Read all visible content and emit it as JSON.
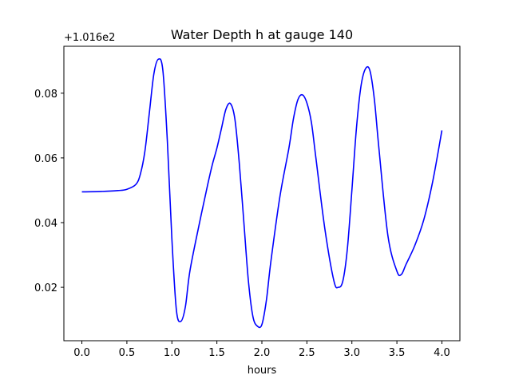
{
  "chart_data": {
    "type": "line",
    "title": "Water Depth h at gauge 140",
    "xlabel": "hours",
    "ylabel": "",
    "offset_text": "+1.016e2",
    "y_offset": 101.6,
    "xlim": [
      -0.2,
      4.2
    ],
    "ylim": [
      0.0035,
      0.0945
    ],
    "x_ticks": [
      0.0,
      0.5,
      1.0,
      1.5,
      2.0,
      2.5,
      3.0,
      3.5,
      4.0
    ],
    "x_tick_labels": [
      "0.0",
      "0.5",
      "1.0",
      "1.5",
      "2.0",
      "2.5",
      "3.0",
      "3.5",
      "4.0"
    ],
    "y_ticks": [
      0.02,
      0.04,
      0.06,
      0.08
    ],
    "y_tick_labels": [
      "0.02",
      "0.04",
      "0.06",
      "0.08"
    ],
    "grid": false,
    "legend": false,
    "line_color": "#0000ff",
    "series": [
      {
        "x": [
          0.0,
          0.2,
          0.4,
          0.5,
          0.6,
          0.65,
          0.7,
          0.75,
          0.8,
          0.85,
          0.9,
          0.95,
          1.0,
          1.05,
          1.1,
          1.15,
          1.2,
          1.3,
          1.4,
          1.45,
          1.5,
          1.55,
          1.6,
          1.65,
          1.7,
          1.75,
          1.8,
          1.85,
          1.9,
          1.95,
          2.0,
          2.05,
          2.1,
          2.2,
          2.3,
          2.35,
          2.4,
          2.45,
          2.5,
          2.55,
          2.6,
          2.7,
          2.8,
          2.85,
          2.9,
          2.95,
          3.0,
          3.05,
          3.1,
          3.15,
          3.2,
          3.25,
          3.3,
          3.4,
          3.5,
          3.55,
          3.6,
          3.7,
          3.8,
          3.9,
          4.0
        ],
        "y": [
          0.0495,
          0.0496,
          0.0499,
          0.0503,
          0.0518,
          0.055,
          0.062,
          0.074,
          0.086,
          0.0905,
          0.087,
          0.065,
          0.035,
          0.013,
          0.0095,
          0.014,
          0.025,
          0.039,
          0.052,
          0.058,
          0.063,
          0.069,
          0.075,
          0.0768,
          0.072,
          0.058,
          0.04,
          0.022,
          0.011,
          0.008,
          0.0085,
          0.016,
          0.028,
          0.048,
          0.063,
          0.072,
          0.078,
          0.0795,
          0.077,
          0.071,
          0.06,
          0.038,
          0.022,
          0.02,
          0.022,
          0.032,
          0.05,
          0.069,
          0.082,
          0.0875,
          0.087,
          0.078,
          0.063,
          0.036,
          0.025,
          0.024,
          0.027,
          0.033,
          0.041,
          0.053,
          0.0685
        ]
      }
    ]
  }
}
